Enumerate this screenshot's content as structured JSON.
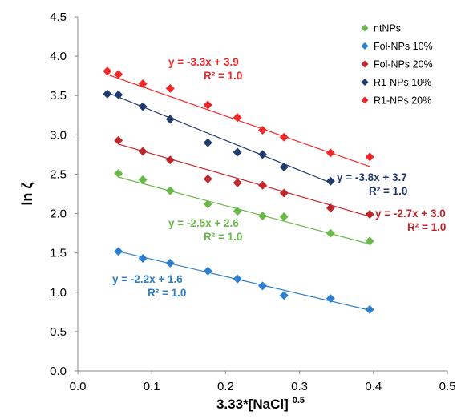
{
  "chart_data": {
    "type": "scatter",
    "xlabel": "3.33*[NaCl]",
    "xlabel_sup": "0.5",
    "ylabel": "ln ζ",
    "xlim": [
      0,
      0.5
    ],
    "ylim": [
      0,
      4.5
    ],
    "x_ticks": [
      "0.0",
      "0.1",
      "0.2",
      "0.3",
      "0.4",
      "0.5"
    ],
    "y_ticks": [
      "0.0",
      "0.5",
      "1.0",
      "1.5",
      "2.0",
      "2.5",
      "3.0",
      "3.5",
      "4.0",
      "4.5"
    ],
    "grid": false,
    "legend_position": "top-right",
    "series": [
      {
        "name": "ntNPs",
        "color": "#6ab84a",
        "x": [
          0.055,
          0.088,
          0.125,
          0.176,
          0.216,
          0.25,
          0.279,
          0.342,
          0.395
        ],
        "y": [
          2.51,
          2.43,
          2.29,
          2.12,
          2.03,
          1.97,
          1.96,
          1.75,
          1.65
        ],
        "fit": {
          "slope": -2.5,
          "intercept": 2.6,
          "x_range": [
            0.055,
            0.395
          ]
        },
        "equation": "y = -2.5x + 2.6",
        "r2": "R² = 1.0"
      },
      {
        "name": "Fol-NPs 10%",
        "color": "#2c7fcc",
        "x": [
          0.055,
          0.088,
          0.125,
          0.176,
          0.216,
          0.25,
          0.279,
          0.342,
          0.395
        ],
        "y": [
          1.52,
          1.43,
          1.37,
          1.27,
          1.17,
          1.08,
          0.96,
          0.92,
          0.78
        ],
        "fit": {
          "slope": -2.2,
          "intercept": 1.64,
          "x_range": [
            0.055,
            0.395
          ]
        },
        "equation": "y = -2.2x + 1.6",
        "r2": "R² = 1.0"
      },
      {
        "name": "Fol-NPs 20%",
        "color": "#c0272d",
        "x": [
          0.055,
          0.088,
          0.125,
          0.176,
          0.216,
          0.25,
          0.279,
          0.342,
          0.395
        ],
        "y": [
          2.93,
          2.79,
          2.68,
          2.44,
          2.39,
          2.36,
          2.26,
          2.07,
          1.99
        ],
        "fit": {
          "slope": -2.7,
          "intercept": 3.03,
          "x_range": [
            0.055,
            0.395
          ]
        },
        "equation": "y = -2.7x + 3.0",
        "r2": "R² = 1.0"
      },
      {
        "name": "R1-NPs 10%",
        "color": "#1f3a6b",
        "x": [
          0.04,
          0.055,
          0.088,
          0.125,
          0.176,
          0.216,
          0.25,
          0.279,
          0.342
        ],
        "y": [
          3.52,
          3.51,
          3.36,
          3.2,
          2.9,
          2.78,
          2.75,
          2.59,
          2.41
        ],
        "fit": {
          "slope": -3.8,
          "intercept": 3.69,
          "x_range": [
            0.04,
            0.342
          ]
        },
        "equation": "y = -3.8x + 3.7",
        "r2": "R² = 1.0"
      },
      {
        "name": "R1-NPs 20%",
        "color": "#f0282a",
        "x": [
          0.04,
          0.055,
          0.088,
          0.125,
          0.176,
          0.216,
          0.25,
          0.279,
          0.342,
          0.395
        ],
        "y": [
          3.81,
          3.77,
          3.65,
          3.59,
          3.38,
          3.22,
          3.06,
          2.97,
          2.77,
          2.72
        ],
        "fit": {
          "slope": -3.3,
          "intercept": 3.9,
          "x_range": [
            0.04,
            0.395
          ]
        },
        "equation": "y = -3.3x + 3.9",
        "r2": "R² = 1.0"
      }
    ]
  }
}
